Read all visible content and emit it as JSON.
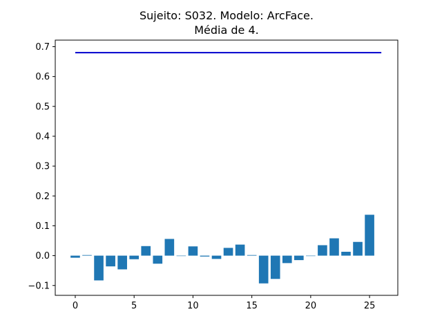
{
  "chart_data": {
    "type": "bar",
    "title_line1": "Sujeito: S032. Modelo: ArcFace.",
    "title_line2": "Média de 4.",
    "x": [
      0,
      1,
      2,
      3,
      4,
      5,
      6,
      7,
      8,
      9,
      10,
      11,
      12,
      13,
      14,
      15,
      16,
      17,
      18,
      19,
      20,
      21,
      22,
      23,
      24,
      25
    ],
    "values": [
      -0.007,
      0.002,
      -0.083,
      -0.036,
      -0.046,
      -0.012,
      0.032,
      -0.027,
      0.056,
      0.0,
      0.031,
      -0.003,
      -0.011,
      0.026,
      0.037,
      0.002,
      -0.093,
      -0.078,
      -0.025,
      -0.015,
      0.0,
      0.035,
      0.058,
      0.013,
      0.046,
      0.137
    ],
    "bar_color": "#1f77b4",
    "threshold": {
      "value": 0.68,
      "x_range": [
        0,
        26
      ],
      "color": "#0000cd"
    },
    "xlim": [
      -1.7,
      27.4
    ],
    "ylim": [
      -0.133,
      0.722
    ],
    "x_ticks": [
      0,
      5,
      10,
      15,
      20,
      25
    ],
    "y_ticks": [
      -0.1,
      0.0,
      0.1,
      0.2,
      0.3,
      0.4,
      0.5,
      0.6,
      0.7
    ],
    "y_tick_labels": [
      "−0.1",
      "0.0",
      "0.1",
      "0.2",
      "0.3",
      "0.4",
      "0.5",
      "0.6",
      "0.7"
    ],
    "grid": false,
    "legend": false
  }
}
